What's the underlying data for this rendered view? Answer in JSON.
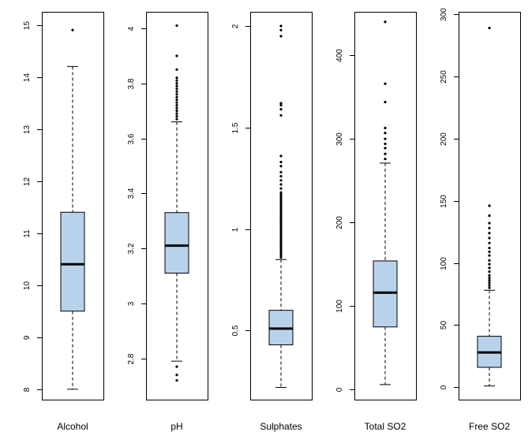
{
  "chart_data": {
    "type": "boxplot",
    "box_color": "#b9d2ec",
    "outline_color": "#000000",
    "panels": [
      {
        "label": "Alcohol",
        "ylim": [
          7.8,
          15.25
        ],
        "ticks": [
          8,
          9,
          10,
          11,
          12,
          13,
          14,
          15
        ],
        "whisker_low": 8.0,
        "q1": 9.5,
        "median": 10.4,
        "q3": 11.4,
        "whisker_high": 14.2,
        "outliers": [
          14.9
        ]
      },
      {
        "label": "pH",
        "ylim": [
          2.65,
          4.06
        ],
        "ticks": [
          2.8,
          3.0,
          3.2,
          3.4,
          3.6,
          3.8,
          4.0
        ],
        "whisker_low": 2.79,
        "q1": 3.11,
        "median": 3.21,
        "q3": 3.33,
        "whisker_high": 3.66,
        "outliers": [
          2.72,
          2.74,
          2.77,
          3.67,
          3.68,
          3.69,
          3.7,
          3.71,
          3.72,
          3.73,
          3.74,
          3.75,
          3.76,
          3.77,
          3.78,
          3.79,
          3.8,
          3.81,
          3.82,
          3.85,
          3.9,
          4.01
        ]
      },
      {
        "label": "Sulphates",
        "ylim": [
          0.16,
          2.07
        ],
        "ticks": [
          0.5,
          1.0,
          1.5,
          2.0
        ],
        "whisker_low": 0.22,
        "q1": 0.43,
        "median": 0.51,
        "q3": 0.6,
        "whisker_high": 0.85,
        "outliers": [
          0.86,
          0.87,
          0.88,
          0.89,
          0.9,
          0.91,
          0.92,
          0.93,
          0.94,
          0.95,
          0.96,
          0.97,
          0.98,
          0.99,
          1.0,
          1.01,
          1.02,
          1.03,
          1.04,
          1.05,
          1.06,
          1.07,
          1.08,
          1.09,
          1.1,
          1.11,
          1.12,
          1.13,
          1.14,
          1.15,
          1.16,
          1.17,
          1.18,
          1.2,
          1.22,
          1.24,
          1.26,
          1.28,
          1.31,
          1.33,
          1.36,
          1.56,
          1.59,
          1.61,
          1.62,
          1.95,
          1.98,
          2.0
        ]
      },
      {
        "label": "Total SO2",
        "ylim": [
          -12,
          452
        ],
        "ticks": [
          0,
          100,
          200,
          300,
          400
        ],
        "whisker_low": 6,
        "q1": 75,
        "median": 116,
        "q3": 154,
        "whisker_high": 271,
        "outliers": [
          276,
          282,
          289,
          294,
          300,
          307,
          313,
          344,
          366,
          440
        ]
      },
      {
        "label": "Free SO2",
        "ylim": [
          -10,
          302
        ],
        "ticks": [
          0,
          50,
          100,
          150,
          200,
          250,
          300
        ],
        "whisker_low": 1,
        "q1": 16,
        "median": 28,
        "q3": 41,
        "whisker_high": 78,
        "outliers": [
          80,
          82,
          84,
          86,
          88,
          90,
          93,
          96,
          99,
          102,
          106,
          109,
          112,
          116,
          120,
          124,
          128,
          132,
          138,
          146,
          289
        ]
      }
    ]
  }
}
